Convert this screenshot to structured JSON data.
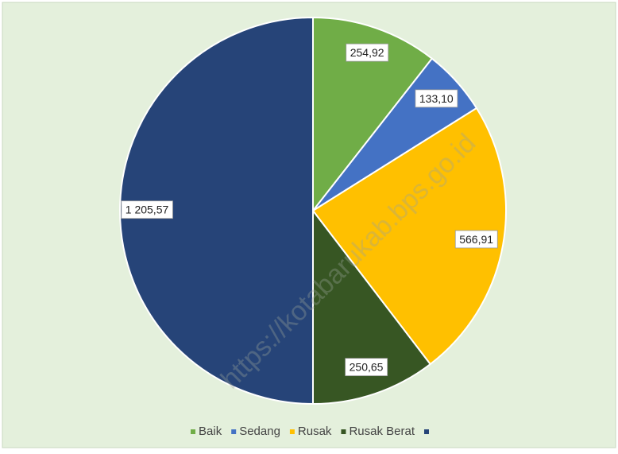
{
  "chart_data": {
    "type": "pie",
    "categories": [
      "Baik",
      "Sedang",
      "Rusak",
      "Rusak Berat",
      null
    ],
    "values": [
      254.92,
      133.1,
      566.91,
      250.65,
      1205.57
    ],
    "value_labels": [
      "254,92",
      "133,10",
      "566,91",
      "250,65",
      "1 205,57"
    ],
    "colors": [
      "#70ad47",
      "#4472c4",
      "#ffc000",
      "#375623",
      "#264478"
    ],
    "legend": "bottom"
  },
  "watermark": "https://kotabarukab.bps.go.id"
}
